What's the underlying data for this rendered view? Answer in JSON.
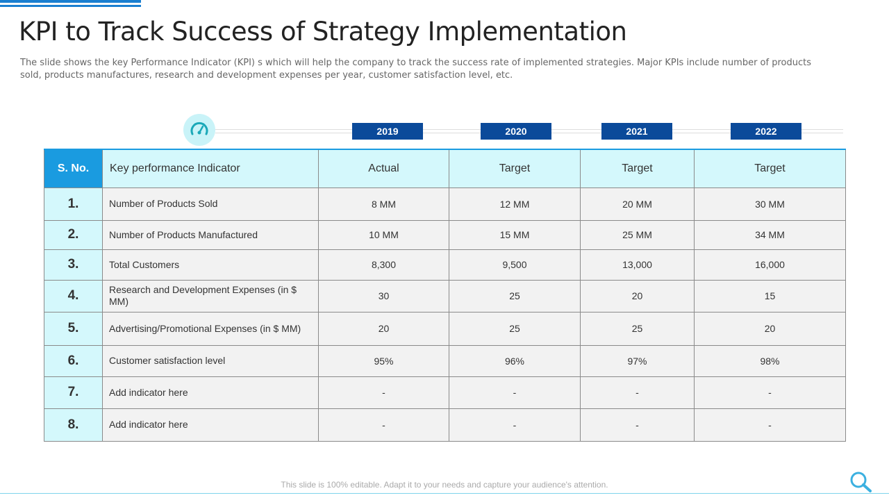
{
  "title": "KPI to Track Success of Strategy Implementation",
  "subtitle": "The slide shows the key Performance Indicator (KPI) s which will help the company to track the success rate of implemented strategies. Major KPIs include number of products sold, products manufactures, research and development expenses per year, customer satisfaction level, etc.",
  "years": [
    "2019",
    "2020",
    "2021",
    "2022"
  ],
  "table": {
    "headers": [
      "S. No.",
      "Key performance Indicator",
      "Actual",
      "Target",
      "Target",
      "Target"
    ],
    "rows": [
      {
        "no": "1.",
        "indicator": "Number of Products Sold",
        "values": [
          "8 MM",
          "12 MM",
          "20 MM",
          "30 MM"
        ]
      },
      {
        "no": "2.",
        "indicator": "Number of Products Manufactured",
        "values": [
          "10 MM",
          "15 MM",
          "25 MM",
          "34 MM"
        ]
      },
      {
        "no": "3.",
        "indicator": "Total Customers",
        "values": [
          "8,300",
          "9,500",
          "13,000",
          "16,000"
        ]
      },
      {
        "no": "4.",
        "indicator": "Research and Development Expenses (in $ MM)",
        "values": [
          "30",
          "25",
          "20",
          "15"
        ]
      },
      {
        "no": "5.",
        "indicator": "Advertising/Promotional Expenses (in $ MM)",
        "values": [
          "20",
          "25",
          "25",
          "20"
        ]
      },
      {
        "no": "6.",
        "indicator": "Customer satisfaction level",
        "values": [
          "95%",
          "96%",
          "97%",
          "98%"
        ]
      },
      {
        "no": "7.",
        "indicator": "Add indicator here",
        "values": [
          "-",
          "-",
          "-",
          "-"
        ]
      },
      {
        "no": "8.",
        "indicator": "Add indicator here",
        "values": [
          "-",
          "-",
          "-",
          "-"
        ]
      }
    ]
  },
  "footer": "This slide is 100% editable. Adapt it to your needs and capture your audience's attention.",
  "colors": {
    "accent": "#1a9be0",
    "year_badge": "#0b4a9a",
    "light_cyan": "#d4f8fc",
    "cell_gray": "#f2f2f2"
  },
  "icons": {
    "gauge": "speedometer-icon",
    "search": "magnifier-icon"
  }
}
